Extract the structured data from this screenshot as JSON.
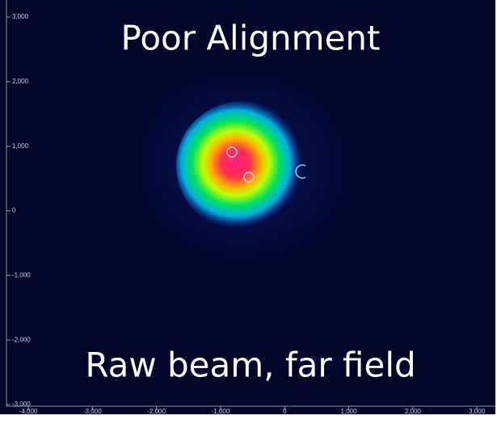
{
  "chart_data": {
    "type": "image",
    "annotations": [
      "Poor Alignment",
      "Raw beam, far field"
    ],
    "xlim": [
      -4000,
      3250
    ],
    "ylim": [
      -3000,
      3200
    ],
    "xticks": [
      {
        "value": -4000,
        "label": "-4,000"
      },
      {
        "value": -3000,
        "label": "-3,000"
      },
      {
        "value": -2000,
        "label": "-2,000"
      },
      {
        "value": -1000,
        "label": "-1,000"
      },
      0,
      {
        "value": 1000,
        "label": "1,000"
      },
      {
        "value": 2000,
        "label": "2,000"
      },
      {
        "value": 3000,
        "label": "3,000"
      }
    ],
    "yticks": [
      {
        "value": -3000,
        "label": "-3,000"
      },
      {
        "value": -2000,
        "label": "-2,000"
      },
      {
        "value": -1000,
        "label": "-1,000"
      },
      0,
      {
        "value": 1000,
        "label": "1,000"
      },
      {
        "value": 2000,
        "label": "2,000"
      },
      {
        "value": 3000,
        "label": "3,000"
      }
    ]
  }
}
